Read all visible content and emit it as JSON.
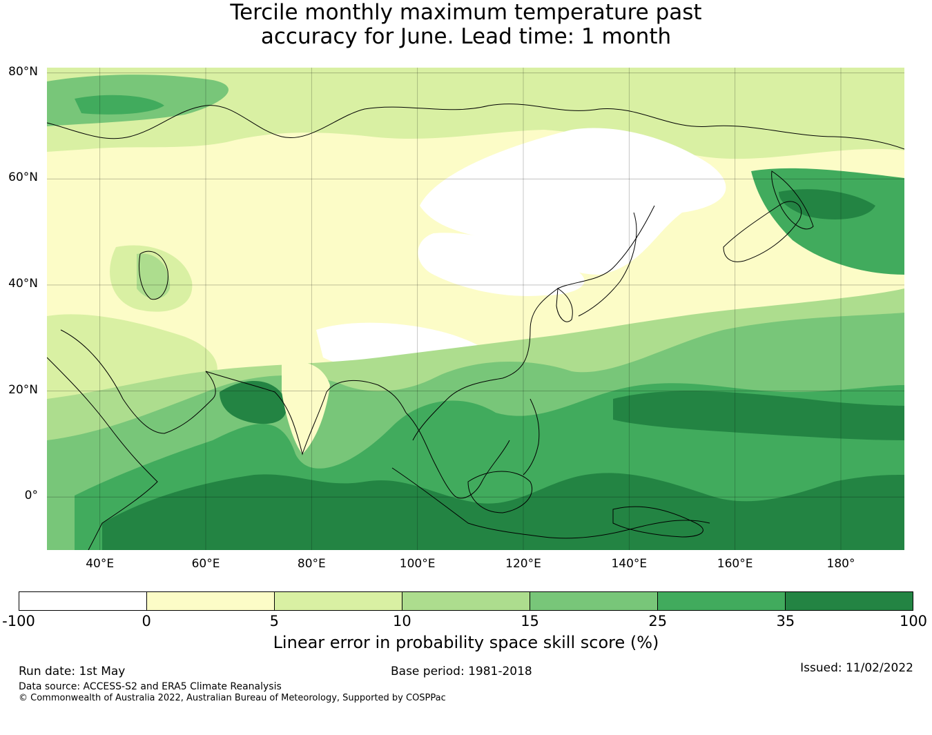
{
  "title": {
    "line1": "Tercile monthly maximum temperature past",
    "line2": "accuracy for June. Lead time: 1 month"
  },
  "map": {
    "lat_labels": [
      "80°N",
      "60°N",
      "40°N",
      "20°N",
      "0°"
    ],
    "lat_values": [
      80,
      60,
      40,
      20,
      0
    ],
    "lon_labels": [
      "40°E",
      "60°E",
      "80°E",
      "100°E",
      "120°E",
      "140°E",
      "160°E",
      "180°"
    ],
    "lon_values": [
      40,
      60,
      80,
      100,
      120,
      140,
      160,
      180
    ],
    "extent": {
      "lon": [
        30,
        192
      ],
      "lat": [
        -10,
        81
      ]
    },
    "projection": "Plate Carrée",
    "grid": true
  },
  "colorbar": {
    "label": "Linear error in probability space skill score (%)",
    "ticks": [
      "-100",
      "0",
      "5",
      "10",
      "15",
      "25",
      "35",
      "100"
    ],
    "colors": [
      "#ffffff",
      "#fcfcc7",
      "#d9f0a3",
      "#addd8e",
      "#78c679",
      "#41ab5d",
      "#238443"
    ]
  },
  "footer": {
    "run_date": "Run date: 1st May",
    "base_period": "Base period: 1981-2018",
    "issued": "Issued: 11/02/2022",
    "data_source": "Data source: ACCESS-S2 and ERA5 Climate Reanalysis",
    "copyright": "© Commonwealth of Australia 2022, Australian Bureau of Meteorology, Supported by COSPPac"
  }
}
